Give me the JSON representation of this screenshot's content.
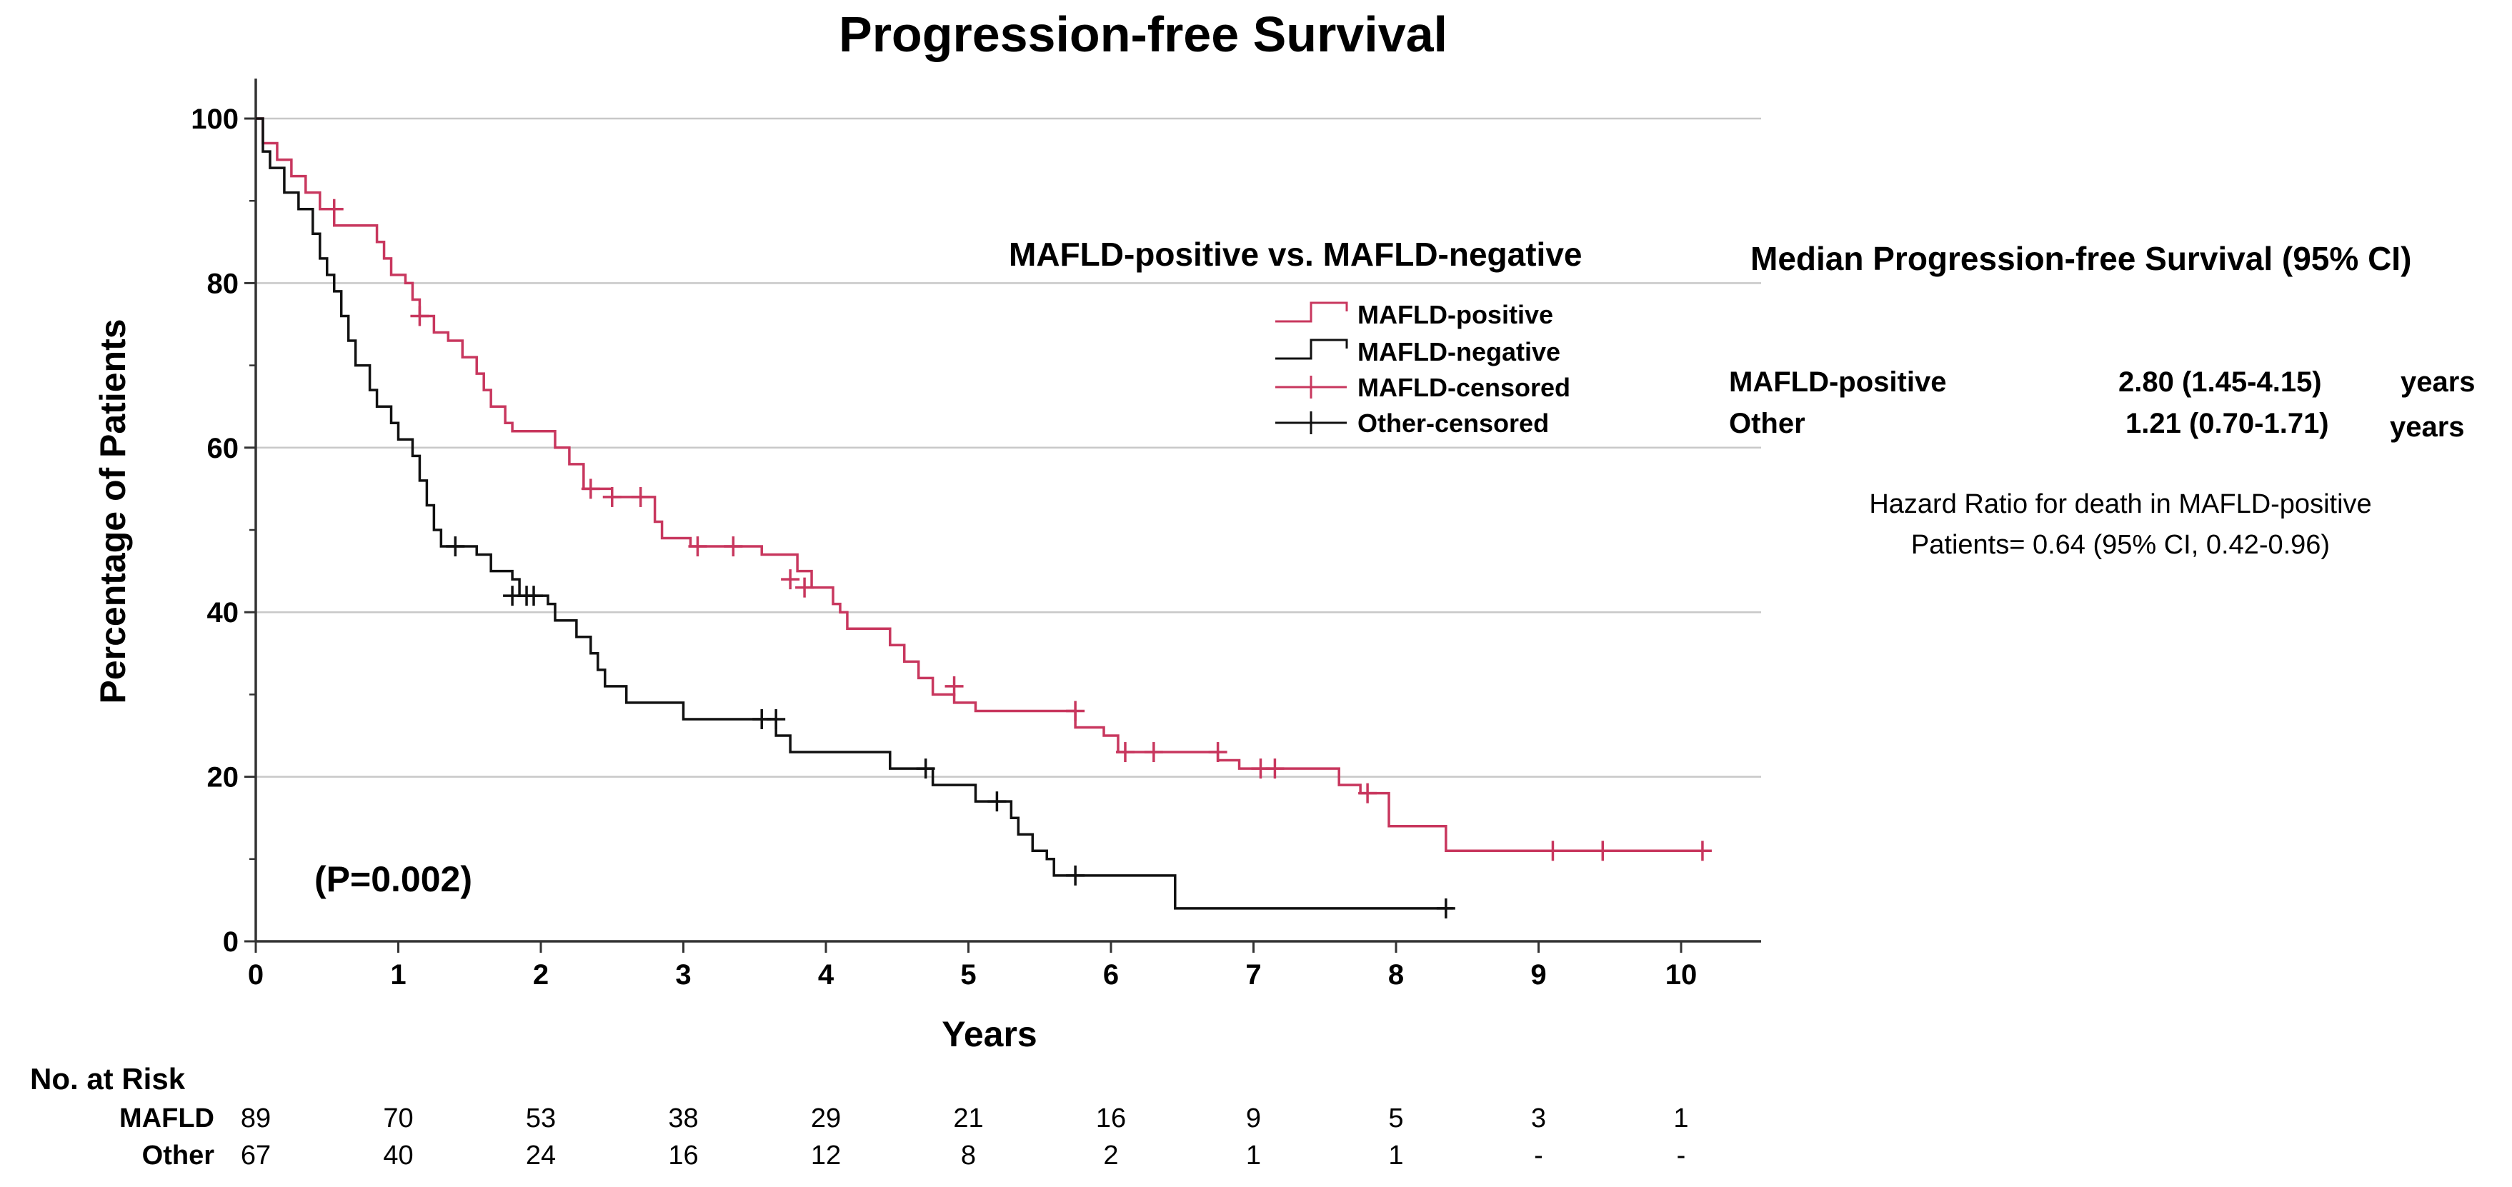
{
  "chart_data": {
    "type": "line",
    "subtype": "kaplan-meier",
    "title": "Progression-free Survival",
    "xlabel": "Years",
    "ylabel": "Percentage of Patients",
    "xlim": [
      0,
      10.5
    ],
    "ylim": [
      0,
      100
    ],
    "x_ticks": [
      "0",
      "1",
      "2",
      "3",
      "4",
      "5",
      "6",
      "7",
      "8",
      "9",
      "10"
    ],
    "y_ticks": [
      "0",
      "20",
      "40",
      "60",
      "80",
      "100"
    ],
    "grid": "horizontal",
    "legend_title": "MAFLD-positive vs. MAFLD-negative",
    "legend": [
      "MAFLD-positive",
      "MAFLD-negative",
      "MAFLD-censored",
      "Other-censored"
    ],
    "series": [
      {
        "name": "MAFLD-positive",
        "color": "#c8375e",
        "steps": [
          [
            0,
            100
          ],
          [
            0.05,
            97
          ],
          [
            0.15,
            95
          ],
          [
            0.25,
            93
          ],
          [
            0.35,
            91
          ],
          [
            0.45,
            89
          ],
          [
            0.55,
            87
          ],
          [
            0.85,
            85
          ],
          [
            0.9,
            83
          ],
          [
            0.95,
            81
          ],
          [
            1.05,
            80
          ],
          [
            1.1,
            78
          ],
          [
            1.15,
            76
          ],
          [
            1.25,
            74
          ],
          [
            1.35,
            73
          ],
          [
            1.45,
            71
          ],
          [
            1.55,
            69
          ],
          [
            1.6,
            67
          ],
          [
            1.65,
            65
          ],
          [
            1.75,
            63
          ],
          [
            1.8,
            62
          ],
          [
            2.1,
            60
          ],
          [
            2.2,
            58
          ],
          [
            2.3,
            55
          ],
          [
            2.5,
            54
          ],
          [
            2.8,
            51
          ],
          [
            2.85,
            49
          ],
          [
            3.05,
            48
          ],
          [
            3.55,
            47
          ],
          [
            3.8,
            45
          ],
          [
            3.9,
            43
          ],
          [
            4.05,
            41
          ],
          [
            4.1,
            40
          ],
          [
            4.15,
            38
          ],
          [
            4.45,
            36
          ],
          [
            4.55,
            34
          ],
          [
            4.65,
            32
          ],
          [
            4.75,
            30
          ],
          [
            4.9,
            29
          ],
          [
            5.05,
            28
          ],
          [
            5.75,
            26
          ],
          [
            5.95,
            25
          ],
          [
            6.05,
            23
          ],
          [
            6.75,
            22
          ],
          [
            6.9,
            21
          ],
          [
            7.6,
            19
          ],
          [
            7.75,
            18
          ],
          [
            7.95,
            14
          ],
          [
            8.35,
            11
          ],
          [
            10.2,
            11
          ]
        ],
        "censored": [
          [
            0.55,
            89
          ],
          [
            1.15,
            76
          ],
          [
            2.35,
            55
          ],
          [
            2.5,
            54
          ],
          [
            2.7,
            54
          ],
          [
            3.1,
            48
          ],
          [
            3.35,
            48
          ],
          [
            3.75,
            44
          ],
          [
            3.85,
            43
          ],
          [
            4.9,
            31
          ],
          [
            5.75,
            28
          ],
          [
            6.1,
            23
          ],
          [
            6.3,
            23
          ],
          [
            6.75,
            23
          ],
          [
            7.05,
            21
          ],
          [
            7.15,
            21
          ],
          [
            7.8,
            18
          ],
          [
            9.1,
            11
          ],
          [
            9.45,
            11
          ],
          [
            10.15,
            11
          ]
        ]
      },
      {
        "name": "MAFLD-negative",
        "color": "#111111",
        "steps": [
          [
            0,
            100
          ],
          [
            0.05,
            96
          ],
          [
            0.1,
            94
          ],
          [
            0.2,
            91
          ],
          [
            0.3,
            89
          ],
          [
            0.4,
            86
          ],
          [
            0.45,
            83
          ],
          [
            0.5,
            81
          ],
          [
            0.55,
            79
          ],
          [
            0.6,
            76
          ],
          [
            0.65,
            73
          ],
          [
            0.7,
            70
          ],
          [
            0.8,
            67
          ],
          [
            0.85,
            65
          ],
          [
            0.95,
            63
          ],
          [
            1.0,
            61
          ],
          [
            1.1,
            59
          ],
          [
            1.15,
            56
          ],
          [
            1.2,
            53
          ],
          [
            1.25,
            50
          ],
          [
            1.3,
            48
          ],
          [
            1.55,
            47
          ],
          [
            1.65,
            45
          ],
          [
            1.8,
            44
          ],
          [
            1.85,
            42
          ],
          [
            2.05,
            41
          ],
          [
            2.1,
            39
          ],
          [
            2.25,
            37
          ],
          [
            2.35,
            35
          ],
          [
            2.4,
            33
          ],
          [
            2.45,
            31
          ],
          [
            2.6,
            29
          ],
          [
            3.0,
            27
          ],
          [
            3.65,
            25
          ],
          [
            3.75,
            23
          ],
          [
            4.45,
            21
          ],
          [
            4.75,
            19
          ],
          [
            5.05,
            17
          ],
          [
            5.3,
            15
          ],
          [
            5.35,
            13
          ],
          [
            5.45,
            11
          ],
          [
            5.55,
            10
          ],
          [
            5.6,
            8
          ],
          [
            6.45,
            4
          ],
          [
            8.4,
            4
          ]
        ],
        "censored": [
          [
            1.4,
            48
          ],
          [
            1.8,
            42
          ],
          [
            1.9,
            42
          ],
          [
            1.95,
            42
          ],
          [
            3.55,
            27
          ],
          [
            3.65,
            27
          ],
          [
            4.7,
            21
          ],
          [
            5.2,
            17
          ],
          [
            5.75,
            8
          ],
          [
            8.35,
            4
          ]
        ]
      }
    ],
    "annotations": [
      "(P=0.002)"
    ]
  },
  "median": {
    "title": "Median Progression-free Survival (95% CI)",
    "rows": [
      {
        "group": "MAFLD-positive",
        "value": "2.80 (1.45-4.15)",
        "unit": "years"
      },
      {
        "group": "Other",
        "value": "1.21 (0.70-1.71)",
        "unit": "years"
      }
    ]
  },
  "hazard": {
    "line1": "Hazard Ratio for death in MAFLD-positive",
    "line2": "Patients= 0.64 (95% CI, 0.42-0.96)"
  },
  "risk_table": {
    "title": "No. at Risk",
    "rows": [
      {
        "label": "MAFLD",
        "values": [
          "89",
          "70",
          "53",
          "38",
          "29",
          "21",
          "16",
          "9",
          "5",
          "3",
          "1"
        ]
      },
      {
        "label": "Other",
        "values": [
          "67",
          "40",
          "24",
          "16",
          "12",
          "8",
          "2",
          "1",
          "1",
          "-",
          "-"
        ]
      }
    ]
  },
  "colors": {
    "mafld": "#c8375e",
    "other": "#111111",
    "grid": "#c8c8c8"
  }
}
